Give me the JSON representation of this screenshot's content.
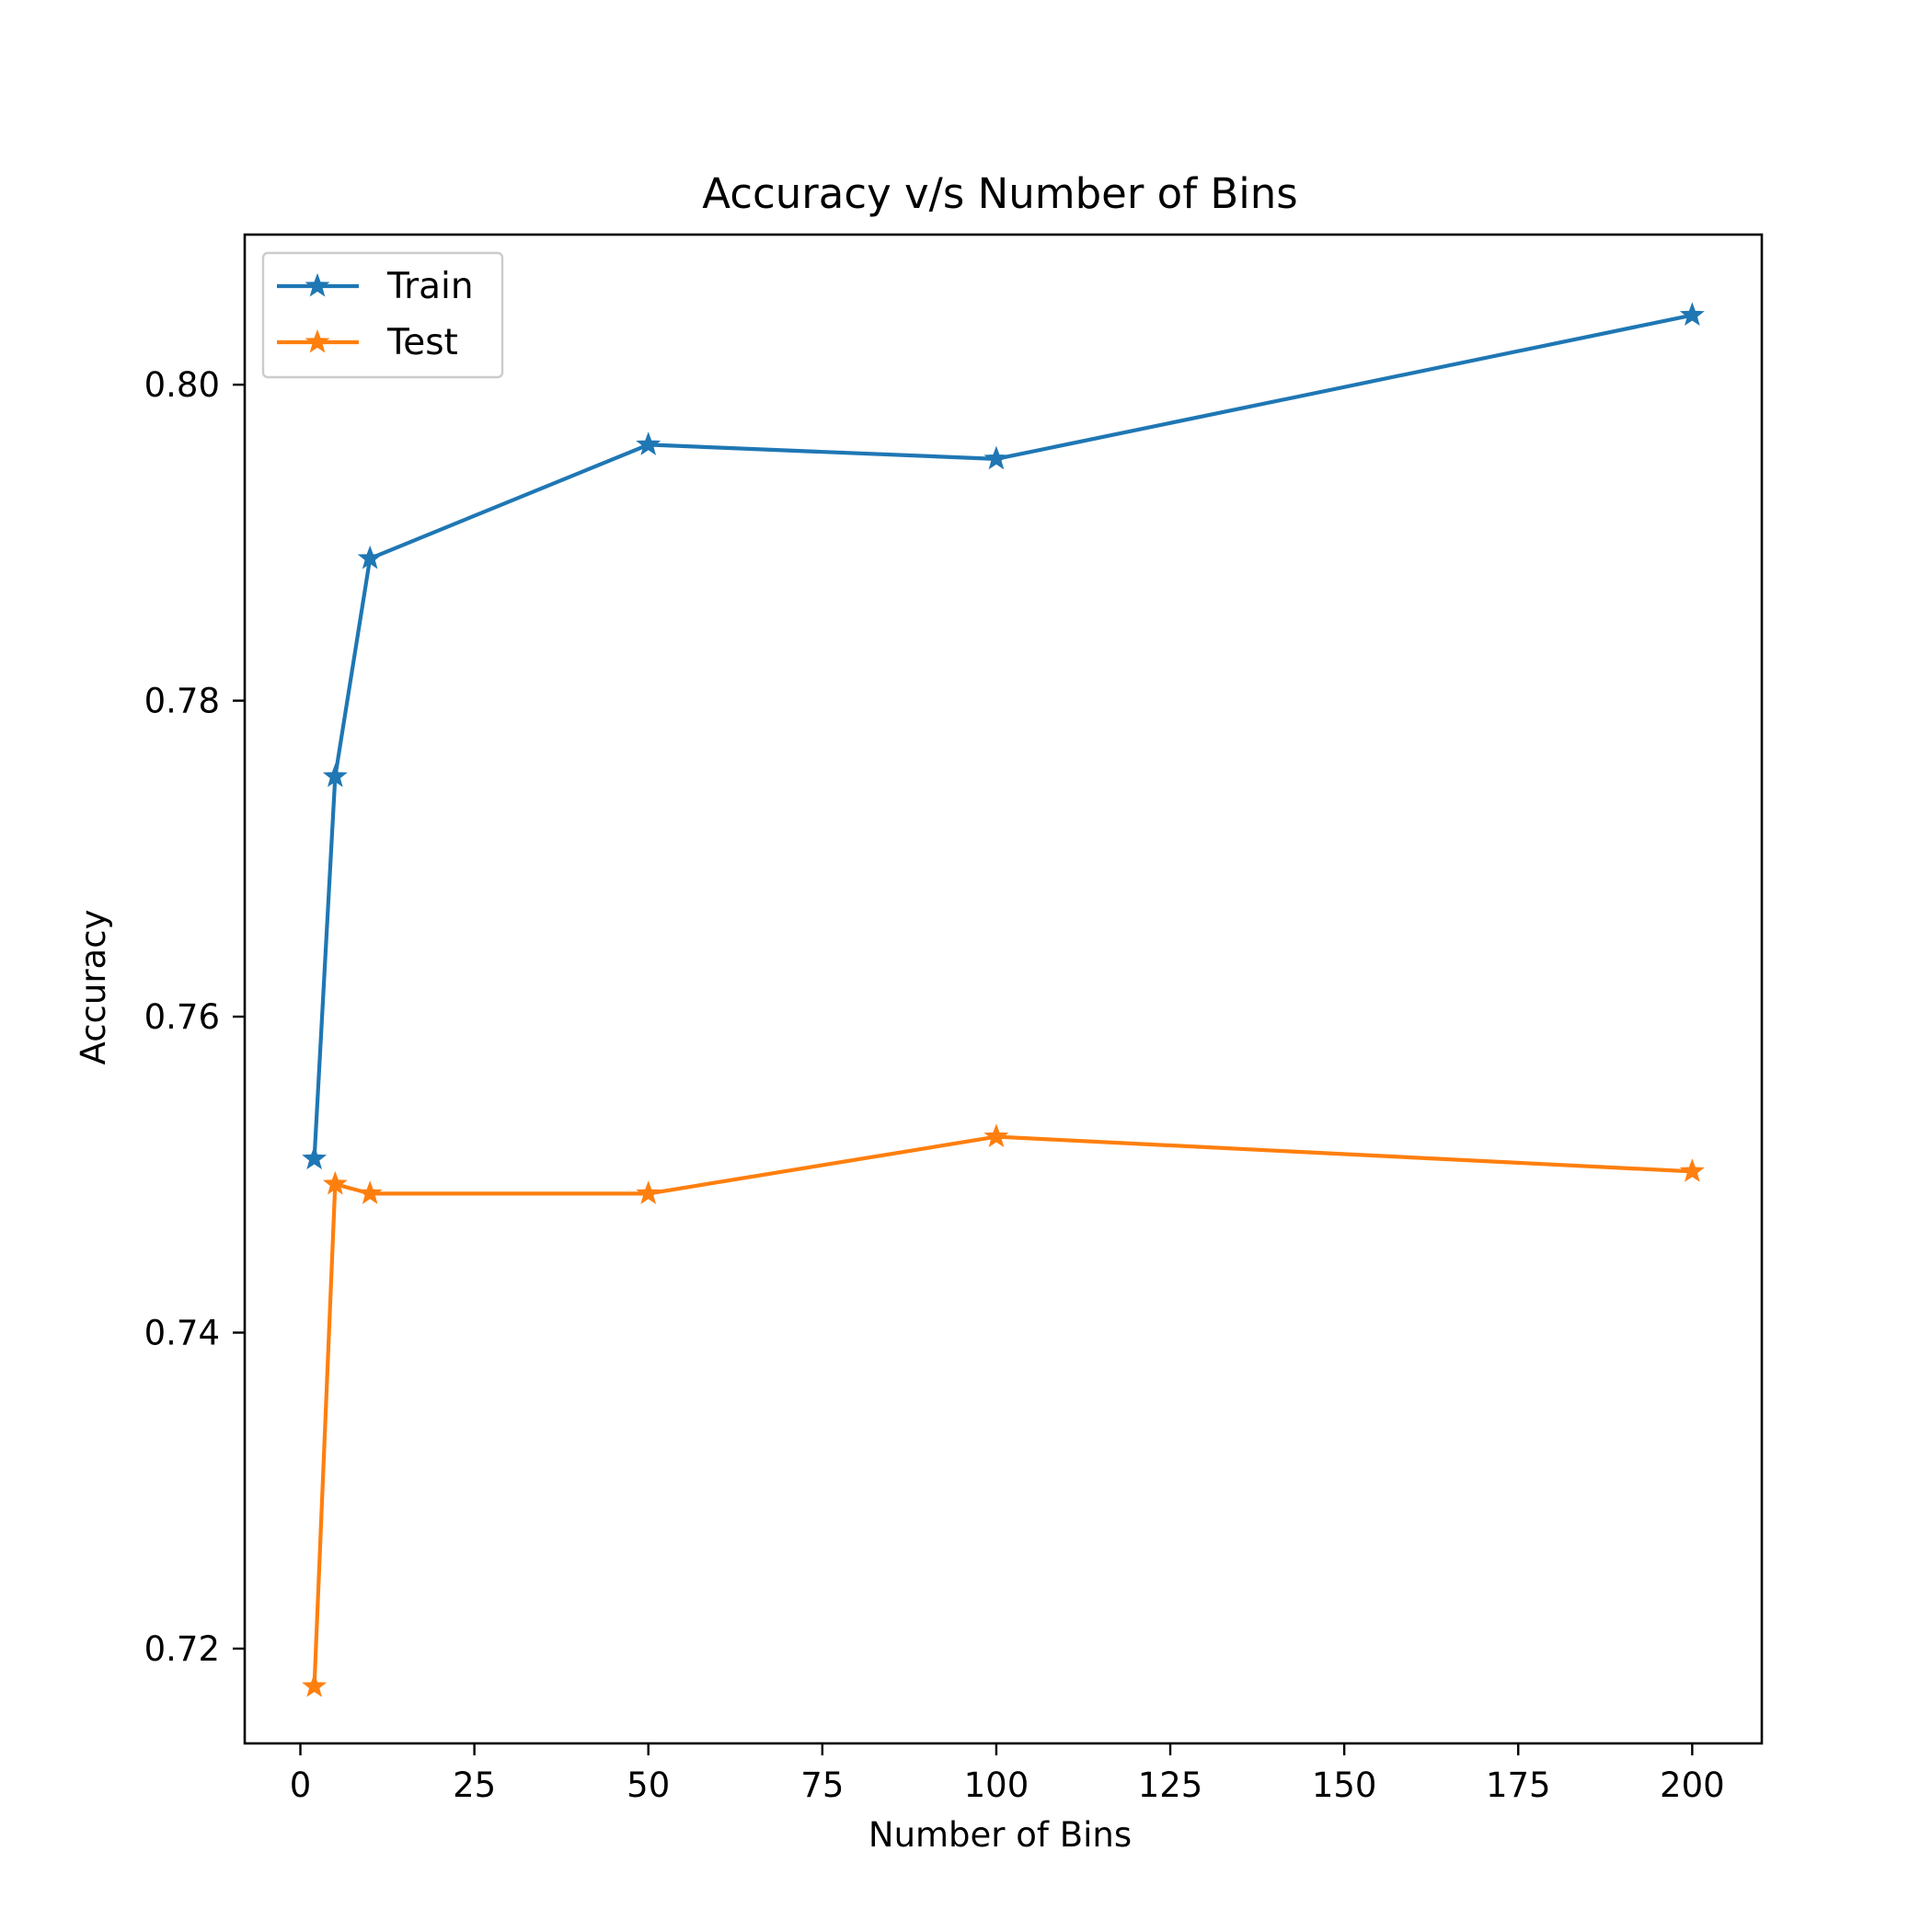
{
  "chart_data": {
    "type": "line",
    "title": "Accuracy v/s Number of Bins",
    "xlabel": "Number of Bins",
    "ylabel": "Accuracy",
    "xlim": [
      -8,
      210
    ],
    "ylim": [
      0.714,
      0.8095
    ],
    "xticks": [
      0,
      25,
      50,
      75,
      100,
      125,
      150,
      175,
      200
    ],
    "xtick_labels": [
      "0",
      "25",
      "50",
      "75",
      "100",
      "125",
      "150",
      "175",
      "200"
    ],
    "yticks": [
      0.72,
      0.74,
      0.76,
      0.78,
      0.8
    ],
    "ytick_labels": [
      "0.72",
      "0.74",
      "0.76",
      "0.78",
      "0.80"
    ],
    "grid": false,
    "legend_position": "top-left",
    "x": [
      2,
      5,
      10,
      50,
      100,
      200
    ],
    "series": [
      {
        "name": "Train",
        "color": "#1f77b4",
        "marker": "star",
        "values": [
          0.751,
          0.7752,
          0.789,
          0.7962,
          0.7953,
          0.8044
        ]
      },
      {
        "name": "Test",
        "color": "#ff7f0e",
        "marker": "star",
        "values": [
          0.7176,
          0.7494,
          0.7488,
          0.7488,
          0.7524,
          0.7502
        ]
      }
    ]
  }
}
